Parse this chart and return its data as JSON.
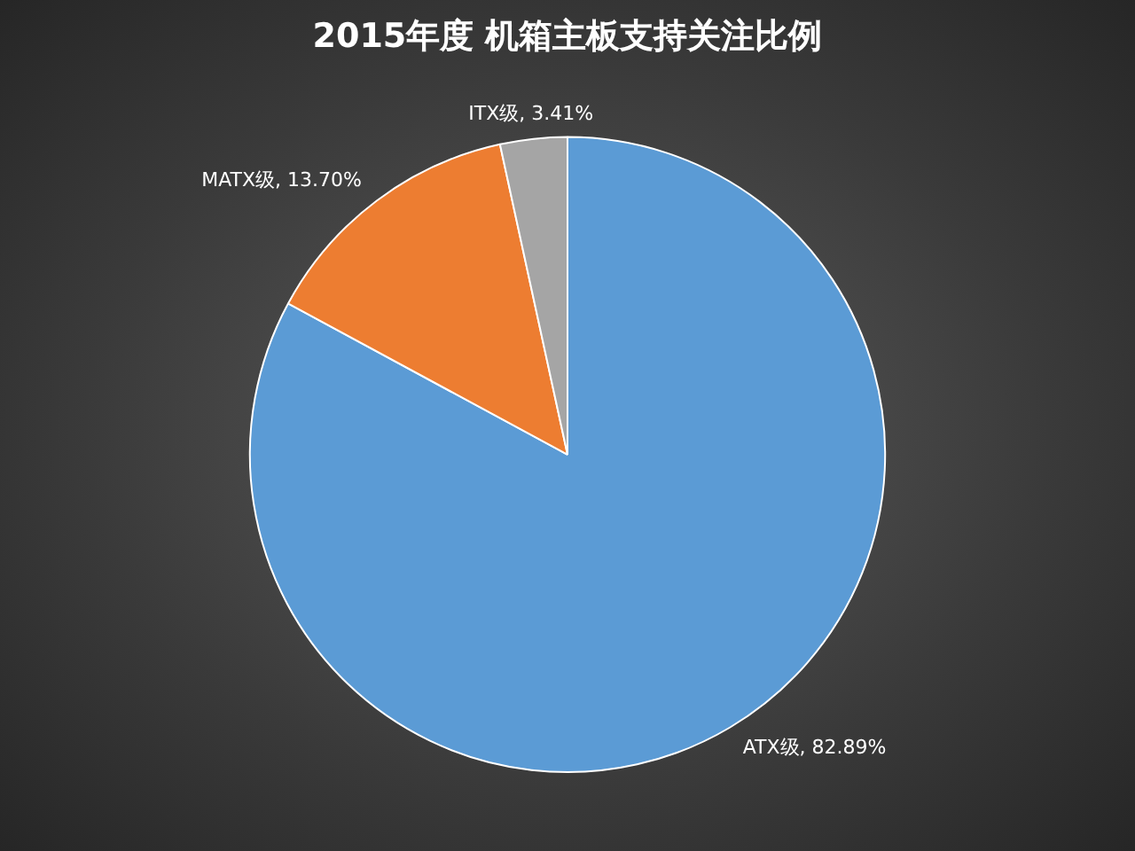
{
  "chart_data": {
    "type": "pie",
    "title": "2015年度 机箱主板支持关注比例",
    "categories": [
      "ATX级",
      "MATX级",
      "ITX级"
    ],
    "values": [
      82.89,
      13.7,
      3.41
    ],
    "colors": [
      "#5b9bd5",
      "#ed7d31",
      "#a5a5a5"
    ],
    "value_labels": [
      "82.89%",
      "13.70%",
      "3.41%"
    ],
    "legend": false
  }
}
